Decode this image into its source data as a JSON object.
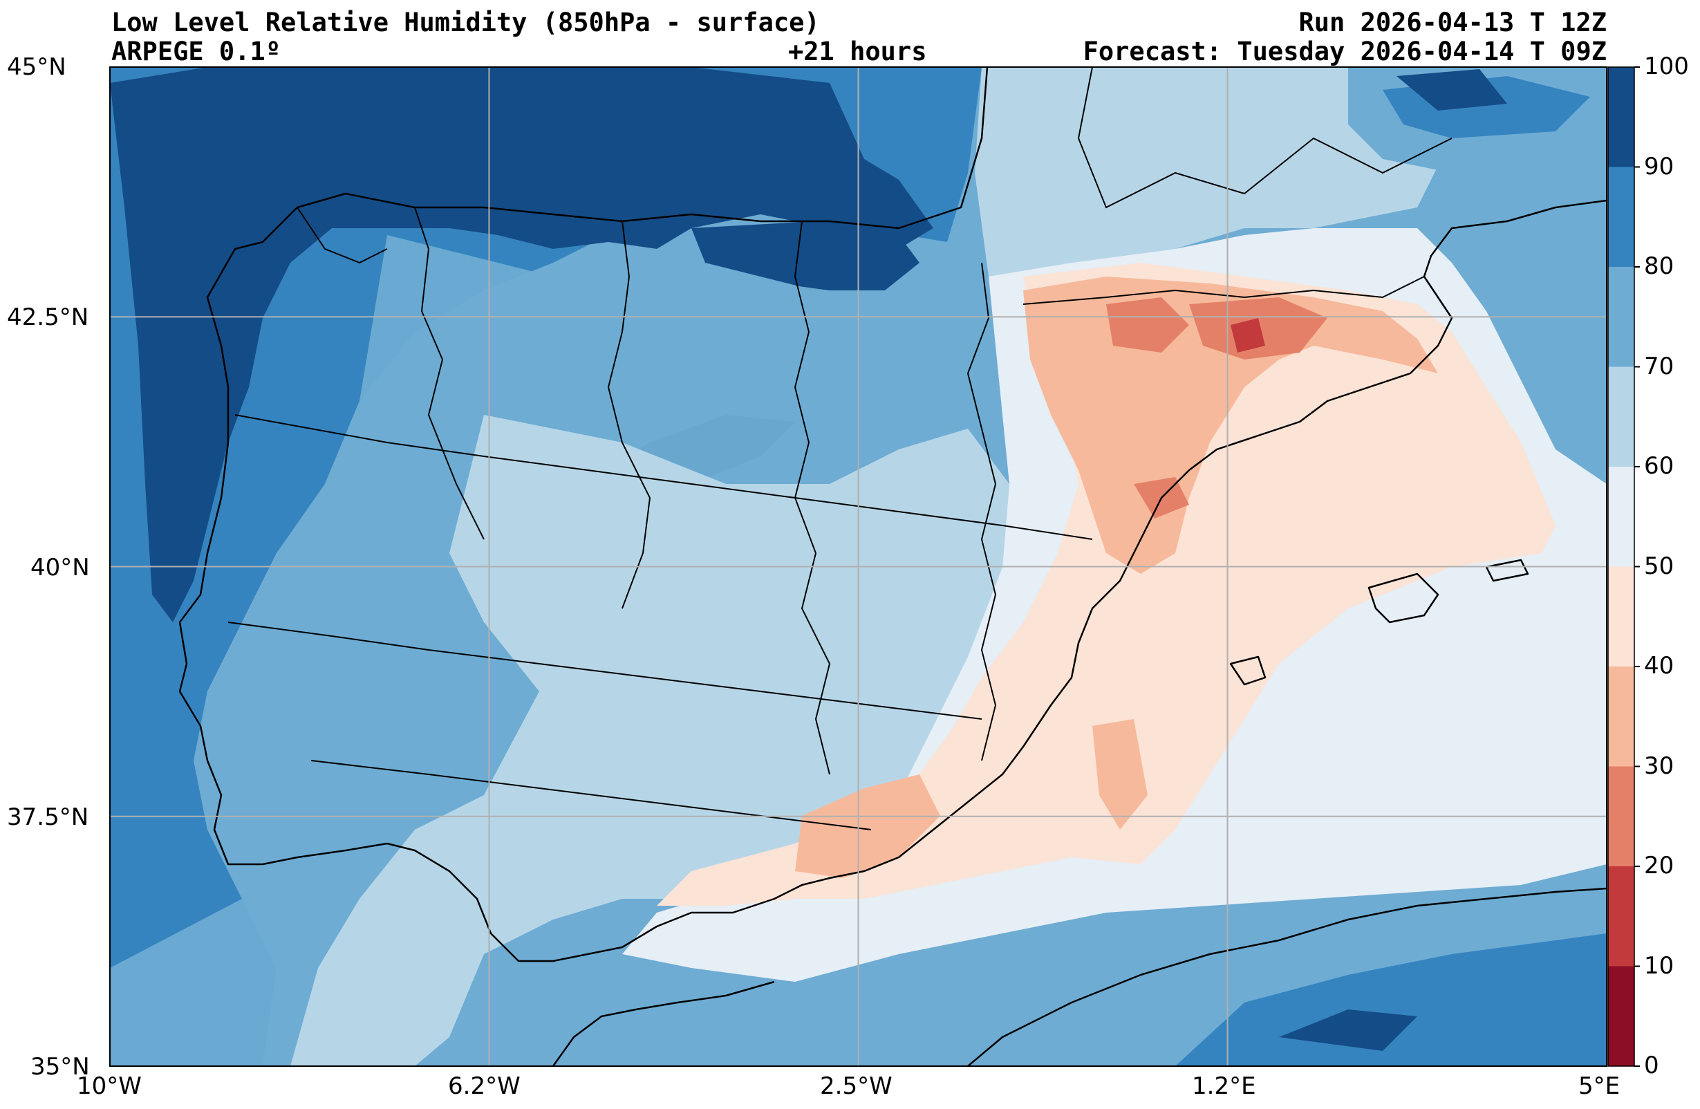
{
  "header": {
    "title": "Low Level Relative Humidity (850hPa - surface)",
    "model": "ARPEGE 0.1º",
    "lead_time": "+21 hours",
    "run": "Run 2026-04-13 T 12Z",
    "forecast": "Forecast: Tuesday 2026-04-14 T 09Z"
  },
  "map": {
    "lon_range": [
      -10,
      5
    ],
    "lat_range": [
      35,
      45
    ],
    "lon_ticks": [
      {
        "value": -10,
        "label": "10°W"
      },
      {
        "value": -6.2,
        "label": "6.2°W"
      },
      {
        "value": -2.5,
        "label": "2.5°W"
      },
      {
        "value": 1.2,
        "label": "1.2°E"
      },
      {
        "value": 5,
        "label": "5°E"
      }
    ],
    "lat_ticks": [
      {
        "value": 45,
        "label": "45°N"
      },
      {
        "value": 42.5,
        "label": "42.5°N"
      },
      {
        "value": 40,
        "label": "40°N"
      },
      {
        "value": 37.5,
        "label": "37.5°N"
      },
      {
        "value": 35,
        "label": "35°N"
      }
    ]
  },
  "colorbar": {
    "levels": [
      0,
      10,
      20,
      30,
      40,
      50,
      60,
      70,
      80,
      90,
      100
    ],
    "labels": [
      "0",
      "10",
      "20",
      "30",
      "40",
      "50",
      "60",
      "70",
      "80",
      "90",
      "100"
    ],
    "colors": [
      "#8b0d26",
      "#c23a3c",
      "#e48068",
      "#f7b99b",
      "#fbe3d6",
      "#e6eef6",
      "#b6d6e8",
      "#6eacd3",
      "#3584c0",
      "#144c87"
    ]
  },
  "colors": {
    "rh_30_40": "#f7b99b",
    "rh_40_50": "#fbe3d6",
    "rh_50_60": "#e6eef6",
    "rh_60_70": "#b6d6e8",
    "rh_70_80": "#6eacd3",
    "rh_80_90": "#3584c0",
    "rh_90_100": "#144c87",
    "rh_20_30": "#e48068",
    "rh_10_20": "#c23a3c",
    "rh_0_10": "#8b0d26",
    "grid": "#b0b0b0",
    "coast": "#000000"
  }
}
